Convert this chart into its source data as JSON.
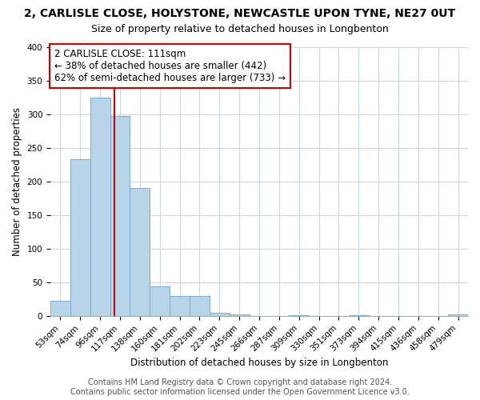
{
  "title": "2, CARLISLE CLOSE, HOLYSTONE, NEWCASTLE UPON TYNE, NE27 0UT",
  "subtitle": "Size of property relative to detached houses in Longbenton",
  "xlabel": "Distribution of detached houses by size in Longbenton",
  "ylabel": "Number of detached properties",
  "bin_labels": [
    "53sqm",
    "74sqm",
    "96sqm",
    "117sqm",
    "138sqm",
    "160sqm",
    "181sqm",
    "202sqm",
    "223sqm",
    "245sqm",
    "266sqm",
    "287sqm",
    "309sqm",
    "330sqm",
    "351sqm",
    "373sqm",
    "394sqm",
    "415sqm",
    "436sqm",
    "458sqm",
    "479sqm"
  ],
  "bar_heights": [
    23,
    233,
    325,
    297,
    190,
    44,
    30,
    30,
    5,
    2,
    0,
    0,
    1,
    0,
    0,
    1,
    0,
    0,
    0,
    0,
    2
  ],
  "bar_color": "#b8d4e8",
  "bar_edge_color": "#7aaccf",
  "highlight_line_color": "#cc0000",
  "annotation_line1": "2 CARLISLE CLOSE: 111sqm",
  "annotation_line2": "← 38% of detached houses are smaller (442)",
  "annotation_line3": "62% of semi-detached houses are larger (733) →",
  "ylim": [
    0,
    400
  ],
  "yticks": [
    0,
    50,
    100,
    150,
    200,
    250,
    300,
    350,
    400
  ],
  "footer_line1": "Contains HM Land Registry data © Crown copyright and database right 2024.",
  "footer_line2": "Contains public sector information licensed under the Open Government Licence v3.0.",
  "background_color": "#ffffff",
  "grid_color": "#c8d8e8",
  "title_fontsize": 10,
  "subtitle_fontsize": 9,
  "axis_label_fontsize": 8.5,
  "tick_fontsize": 7.5,
  "annotation_fontsize": 8.5,
  "footer_fontsize": 7
}
